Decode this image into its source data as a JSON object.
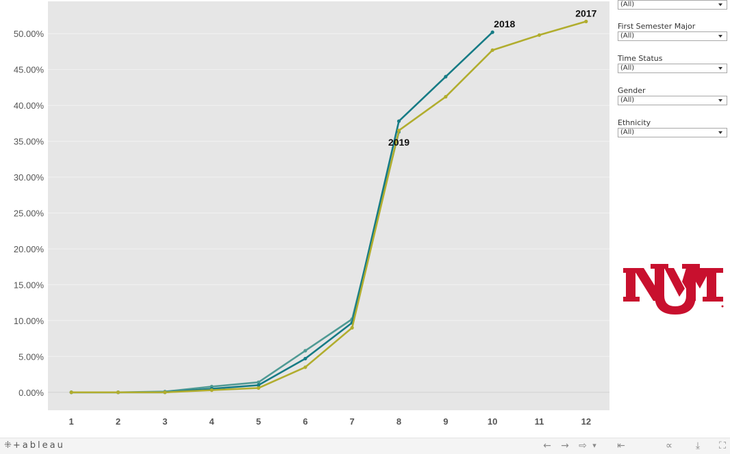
{
  "filters": [
    {
      "label": "",
      "value": "(All)"
    },
    {
      "label": "First Semester Major",
      "value": "(All)"
    },
    {
      "label": "Time Status",
      "value": "(All)"
    },
    {
      "label": "Gender",
      "value": "(All)"
    },
    {
      "label": "Ethnicity",
      "value": "(All)"
    }
  ],
  "footer": {
    "brand": "+ableau",
    "brand_mark": "⁜",
    "icons": [
      "undo-icon",
      "redo-icon",
      "revert-icon",
      "dropdown-icon",
      "reset-icon",
      "share-icon",
      "download-icon",
      "fullscreen-icon"
    ],
    "glyphs": [
      "←",
      "→",
      "⇨",
      "▾",
      "⇤",
      "∝",
      "⤓",
      "⛶"
    ]
  },
  "logo": {
    "color": "#c8102e"
  },
  "chart_data": {
    "type": "line",
    "x": [
      1,
      2,
      3,
      4,
      5,
      6,
      7,
      8,
      9,
      10,
      11,
      12
    ],
    "xlim": [
      0.5,
      12.5
    ],
    "ylim": [
      -2.5,
      54.5
    ],
    "yticks": [
      0,
      5,
      10,
      15,
      20,
      25,
      30,
      35,
      40,
      45,
      50
    ],
    "ytick_labels": [
      "0.00%",
      "5.00%",
      "10.00%",
      "15.00%",
      "20.00%",
      "25.00%",
      "30.00%",
      "35.00%",
      "40.00%",
      "45.00%",
      "50.00%"
    ],
    "xtick_labels": [
      "1",
      "2",
      "3",
      "4",
      "5",
      "6",
      "7",
      "8",
      "9",
      "10",
      "11",
      "12"
    ],
    "grid": "horizontal",
    "series": [
      {
        "name": "2019",
        "color": "#4f9a94",
        "values": [
          0.0,
          0.0,
          0.1,
          0.8,
          1.4,
          5.8,
          10.2,
          36.3,
          null,
          null,
          null,
          null
        ]
      },
      {
        "name": "2018",
        "color": "#167b85",
        "values": [
          0.0,
          0.0,
          0.0,
          0.5,
          1.0,
          4.7,
          9.7,
          37.8,
          44.0,
          50.2,
          null,
          null
        ]
      },
      {
        "name": "2017",
        "color": "#b1ad2e",
        "values": [
          0.0,
          0.0,
          0.0,
          0.3,
          0.6,
          3.5,
          9.0,
          36.5,
          41.2,
          47.7,
          49.8,
          51.7
        ]
      }
    ],
    "labels": [
      {
        "text": "2018",
        "x": 10,
        "y": 50.2,
        "anchor": "right-above"
      },
      {
        "text": "2017",
        "x": 12,
        "y": 51.7,
        "anchor": "above"
      },
      {
        "text": "2019",
        "x": 8,
        "y": 36.3,
        "anchor": "below"
      }
    ]
  }
}
